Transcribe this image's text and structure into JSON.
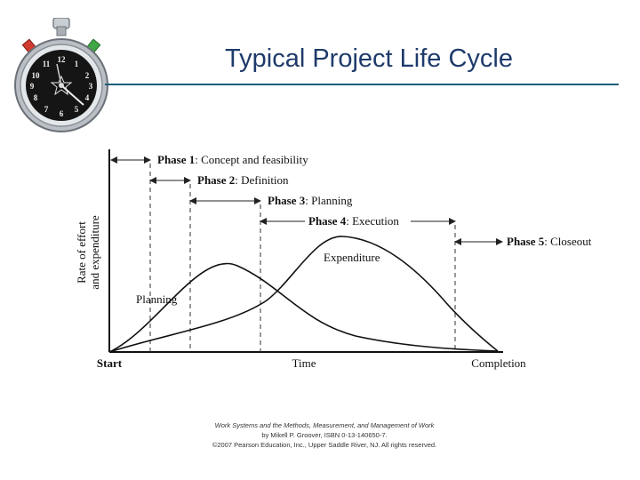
{
  "slide": {
    "title": "Typical Project Life Cycle"
  },
  "diagram": {
    "phases": [
      {
        "bold": "Phase 1",
        "desc": ": Concept and feasibility"
      },
      {
        "bold": "Phase 2",
        "desc": ": Definition"
      },
      {
        "bold": "Phase 3",
        "desc": ": Planning"
      },
      {
        "bold": "Phase 4",
        "desc": ": Execution"
      },
      {
        "bold": "Phase 5",
        "desc": ": Closeout"
      }
    ],
    "y_axis_label_line1": "Rate of effort",
    "y_axis_label_line2": "and expenditure",
    "x_axis_label": "Time",
    "x_start_label": "Start",
    "x_end_label": "Completion",
    "curve_planning_label": "Planning",
    "curve_expenditure_label": "Expenditure"
  },
  "credit": {
    "line1": "Work Systems and the Methods, Measurement, and Management of Work",
    "line2": "by Mikell P. Groover, ISBN 0-13-140650-7.",
    "line3": "©2007 Pearson Education, Inc., Upper Saddle River, NJ.  All rights reserved."
  },
  "icons": {
    "stopwatch": "stopwatch-icon"
  }
}
